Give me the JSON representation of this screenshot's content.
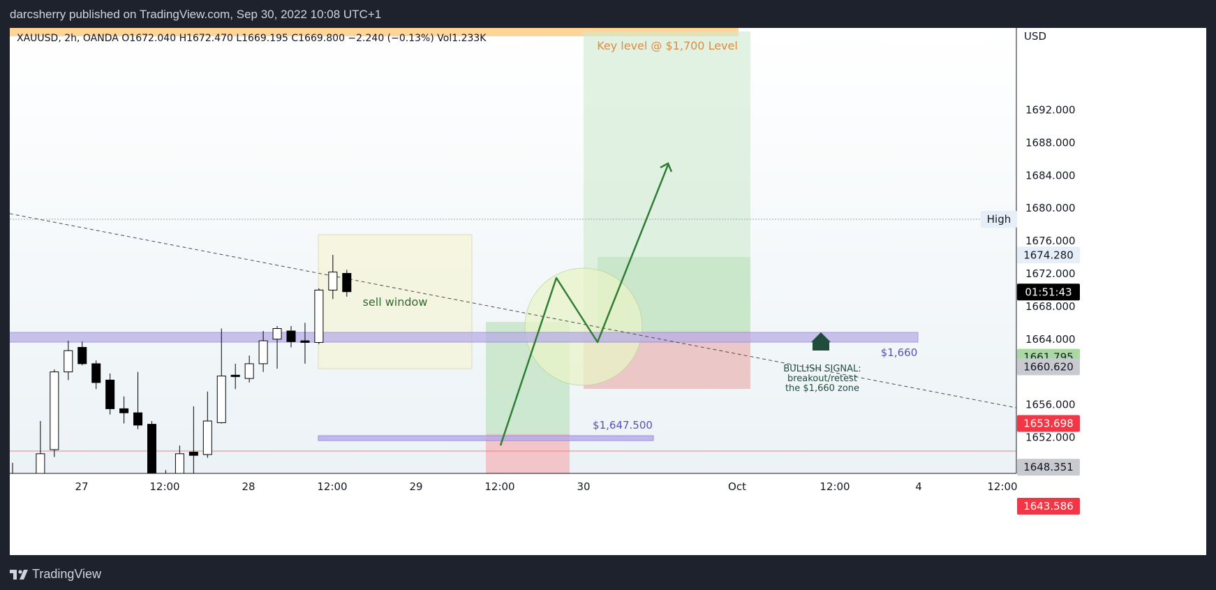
{
  "header": {
    "publish_text": "darcsherry published on TradingView.com, Sep 30, 2022 10:08 UTC+1"
  },
  "legend": {
    "text": "XAUUSD, 2h, OANDA  O1672.040  H1672.470  L1669.195  C1669.800  −2.240 (−0.13%)  Vol1.233K"
  },
  "footer": {
    "brand": "TradingView"
  },
  "colors": {
    "bull": "#ffffff",
    "bear": "#000000",
    "outline": "#000000",
    "accent_green": "#2e7d32",
    "lavender": "#b8aee6"
  },
  "chart_data": {
    "type": "candlestick",
    "symbol": "XAUUSD",
    "timeframe": "2h",
    "broker": "OANDA",
    "y_axis_label": "USD",
    "y_ticks": [
      "1692.000",
      "1688.000",
      "1684.000",
      "1680.000",
      "1676.000",
      "1672.000",
      "1668.000",
      "1664.000",
      "1656.000",
      "1652.000"
    ],
    "x_ticks": [
      "27",
      "12:00",
      "28",
      "12:00",
      "29",
      "12:00",
      "30",
      "Oct",
      "12:00",
      "4",
      "12:00"
    ],
    "candles": [
      {
        "o": 1646.3,
        "h": 1648.9,
        "l": 1643.3,
        "c": 1644.6
      },
      {
        "o": 1643.9,
        "h": 1646.2,
        "l": 1642.6,
        "c": 1643.1
      },
      {
        "o": 1638.0,
        "h": 1654.0,
        "l": 1636.0,
        "c": 1650.0
      },
      {
        "o": 1650.5,
        "h": 1660.3,
        "l": 1649.6,
        "c": 1660.0
      },
      {
        "o": 1660.0,
        "h": 1663.8,
        "l": 1659.0,
        "c": 1662.6
      },
      {
        "o": 1663.0,
        "h": 1663.7,
        "l": 1660.8,
        "c": 1661.0
      },
      {
        "o": 1661.0,
        "h": 1661.4,
        "l": 1657.9,
        "c": 1658.7
      },
      {
        "o": 1659.0,
        "h": 1659.8,
        "l": 1654.8,
        "c": 1655.5
      },
      {
        "o": 1655.5,
        "h": 1657.0,
        "l": 1653.7,
        "c": 1655.0
      },
      {
        "o": 1655.0,
        "h": 1660.0,
        "l": 1653.0,
        "c": 1653.5
      },
      {
        "o": 1653.6,
        "h": 1654.0,
        "l": 1642.9,
        "c": 1647.2
      },
      {
        "o": 1647.0,
        "h": 1648.0,
        "l": 1642.0,
        "c": 1644.0
      },
      {
        "o": 1644.0,
        "h": 1651.0,
        "l": 1644.0,
        "c": 1650.0
      },
      {
        "o": 1650.2,
        "h": 1655.8,
        "l": 1644.6,
        "c": 1649.8
      },
      {
        "o": 1649.9,
        "h": 1657.6,
        "l": 1649.5,
        "c": 1654.0
      },
      {
        "o": 1653.8,
        "h": 1665.3,
        "l": 1653.7,
        "c": 1659.5
      },
      {
        "o": 1659.6,
        "h": 1661.0,
        "l": 1657.9,
        "c": 1659.5
      },
      {
        "o": 1659.2,
        "h": 1662.0,
        "l": 1658.7,
        "c": 1661.0
      },
      {
        "o": 1661.0,
        "h": 1665.0,
        "l": 1660.0,
        "c": 1663.8
      },
      {
        "o": 1664.0,
        "h": 1665.6,
        "l": 1660.4,
        "c": 1665.3
      },
      {
        "o": 1665.0,
        "h": 1665.6,
        "l": 1663.0,
        "c": 1663.7
      },
      {
        "o": 1663.8,
        "h": 1666.0,
        "l": 1661.0,
        "c": 1663.6
      },
      {
        "o": 1663.6,
        "h": 1670.2,
        "l": 1663.4,
        "c": 1670.0
      },
      {
        "o": 1670.0,
        "h": 1674.3,
        "l": 1668.9,
        "c": 1672.2
      },
      {
        "o": 1672.04,
        "h": 1672.47,
        "l": 1669.195,
        "c": 1669.8
      }
    ],
    "price_labels": [
      {
        "text": "1674.280",
        "type": "high",
        "value": 1674.28
      },
      {
        "text": "01:51:43",
        "type": "countdown",
        "value": 1670.1
      },
      {
        "text": "1661.795",
        "type": "green",
        "value": 1661.795
      },
      {
        "text": "1660.620",
        "type": "gray",
        "value": 1660.62
      },
      {
        "text": "1653.698",
        "type": "red",
        "value": 1653.698
      },
      {
        "text": "1648.351",
        "type": "gray",
        "value": 1648.351
      },
      {
        "text": "1643.586",
        "type": "red",
        "value": 1643.586
      }
    ],
    "high_label": "High",
    "annotations": {
      "key_level": "Key level @ $1,700 Level",
      "sell_window": "sell window",
      "level_1660": "$1,660",
      "level_1647": "$1,647.500",
      "bullish_lines": [
        "BULLISH SIGNAL:",
        "breakout/retest",
        "the $1,660 zone"
      ]
    }
  }
}
